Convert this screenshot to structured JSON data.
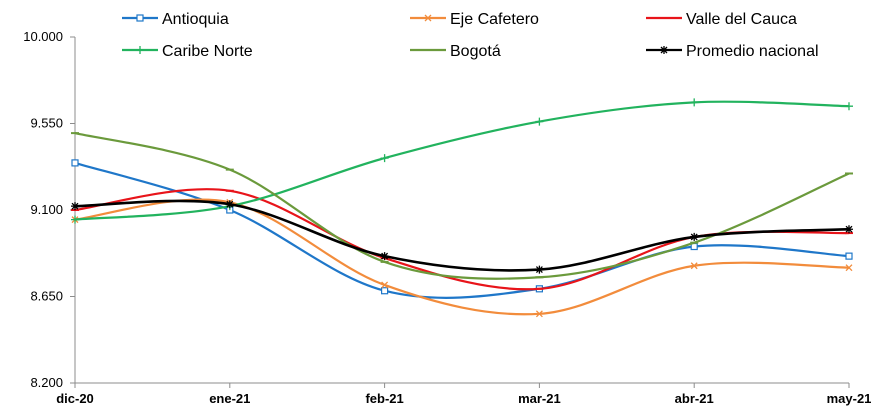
{
  "chart_data": {
    "type": "line",
    "title": "",
    "xlabel": "",
    "ylabel": "",
    "categories": [
      "dic-20",
      "ene-21",
      "feb-21",
      "mar-21",
      "abr-21",
      "may-21"
    ],
    "yticks": [
      "8.200",
      "8.650",
      "9.100",
      "9.550",
      "10.000"
    ],
    "ylim": [
      8200,
      10000
    ],
    "grid": false,
    "legend_position": "top",
    "series": [
      {
        "name": "Antioquia",
        "color": "#1f77c9",
        "marker": "square",
        "values": [
          9345,
          9100,
          8680,
          8690,
          8910,
          8860
        ]
      },
      {
        "name": "Eje Cafetero",
        "color": "#f28c3c",
        "marker": "x",
        "values": [
          9050,
          9140,
          8710,
          8560,
          8810,
          8800
        ]
      },
      {
        "name": "Valle del Cauca",
        "color": "#e8141a",
        "marker": "dash",
        "values": [
          9100,
          9200,
          8850,
          8690,
          8960,
          8980
        ]
      },
      {
        "name": "Caribe Norte",
        "color": "#22b35e",
        "marker": "plus",
        "values": [
          9050,
          9120,
          9370,
          9560,
          9660,
          9640
        ]
      },
      {
        "name": "Bogotá",
        "color": "#6b9a3c",
        "marker": "dash",
        "values": [
          9500,
          9310,
          8830,
          8750,
          8930,
          9290
        ]
      },
      {
        "name": "Promedio nacional",
        "color": "#000000",
        "marker": "star",
        "values": [
          9120,
          9130,
          8860,
          8790,
          8960,
          9000
        ]
      }
    ]
  }
}
